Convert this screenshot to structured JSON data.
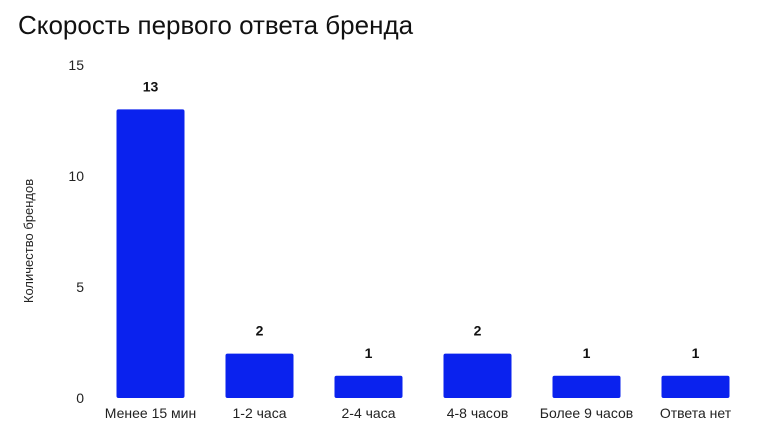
{
  "chart_data": {
    "type": "bar",
    "title": "Скорость первого ответа бренда",
    "xlabel": "",
    "ylabel": "Количество брендов",
    "categories": [
      "Менее 15 мин",
      "1-2 часа",
      "2-4 часа",
      "4-8 часов",
      "Более 9 часов",
      "Ответа нет"
    ],
    "values": [
      13,
      2,
      1,
      2,
      1,
      1
    ],
    "data_labels": [
      "13",
      "2",
      "1",
      "2",
      "1",
      "1"
    ],
    "ylim": [
      0,
      15
    ],
    "yticks": [
      0,
      5,
      10,
      15
    ],
    "ytick_labels": [
      "0",
      "5",
      "10",
      "15"
    ],
    "grid": false,
    "legend": "none",
    "bar_color": "#0a22ee"
  }
}
